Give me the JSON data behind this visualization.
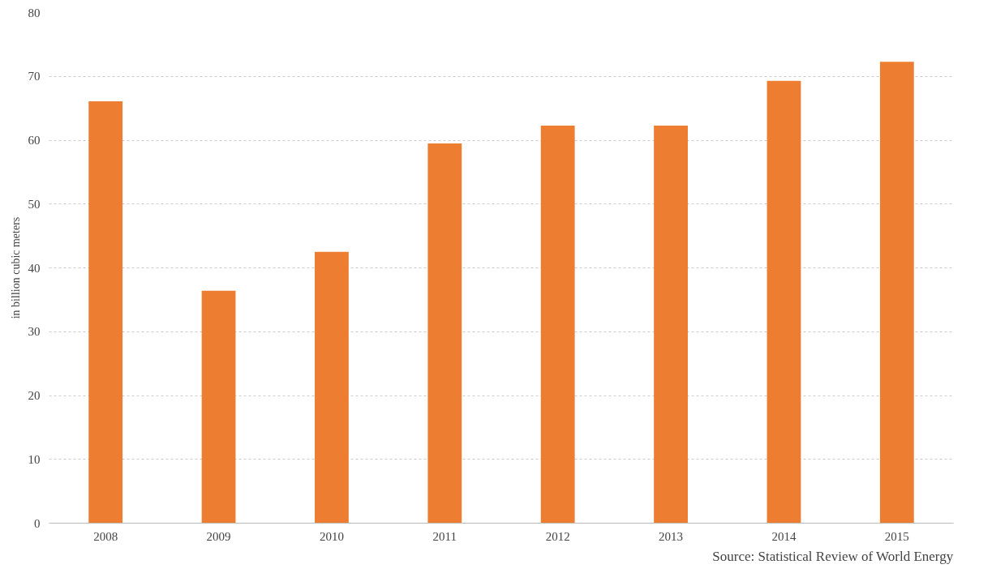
{
  "chart_data": {
    "type": "bar",
    "ylabel": "in billion cubic meters",
    "categories": [
      "2008",
      "2009",
      "2010",
      "2011",
      "2012",
      "2013",
      "2014",
      "2015"
    ],
    "values": [
      66.1,
      36.4,
      42.5,
      59.5,
      62.3,
      62.3,
      69.3,
      72.3
    ],
    "color": "#ed7d31",
    "ylim": [
      0,
      80
    ],
    "yticks": [
      0,
      10,
      20,
      30,
      40,
      50,
      60,
      70,
      80
    ],
    "grid": "y",
    "annotations": [
      "Source: Statistical Review of World Energy"
    ]
  }
}
